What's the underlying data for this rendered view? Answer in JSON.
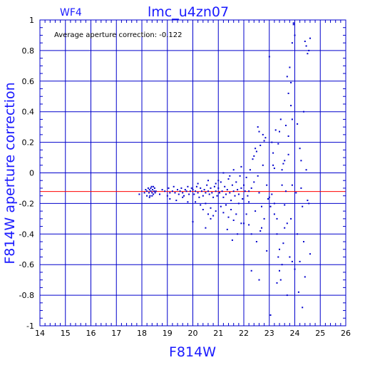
{
  "chart_data": {
    "type": "scatter",
    "title": "lmc_u4zn07",
    "subtitle": "WF4",
    "xlabel": "F814W",
    "ylabel": "F814W aperture correction",
    "annotation": "Average aperture correction: -0.122",
    "xlim": [
      14,
      26
    ],
    "ylim": [
      -1,
      1
    ],
    "xticks": [
      "14",
      "15",
      "16",
      "17",
      "18",
      "19",
      "20",
      "21",
      "22",
      "23",
      "24",
      "25",
      "26"
    ],
    "yticks": [
      "-1",
      "-0.8",
      "-0.6",
      "-0.4",
      "-0.2",
      "0",
      "0.2",
      "0.4",
      "0.6",
      "0.8",
      "1"
    ],
    "grid": true,
    "reference_line": {
      "y": -0.122,
      "color": "#ff0000"
    },
    "colors": {
      "axes": "#0000cc",
      "points": "#0000cc",
      "text": "#1a1aff"
    },
    "series": [
      {
        "points": [
          [
            17.9,
            -0.14
          ],
          [
            18.1,
            -0.13
          ],
          [
            18.15,
            -0.11
          ],
          [
            18.2,
            -0.12
          ],
          [
            18.25,
            -0.1
          ],
          [
            18.28,
            -0.13
          ],
          [
            18.3,
            -0.11
          ],
          [
            18.32,
            -0.15
          ],
          [
            18.35,
            -0.12
          ],
          [
            18.38,
            -0.09
          ],
          [
            18.4,
            -0.13
          ],
          [
            18.42,
            -0.11
          ],
          [
            18.45,
            -0.14
          ],
          [
            18.48,
            -0.12
          ],
          [
            18.5,
            -0.1
          ],
          [
            18.52,
            -0.13
          ],
          [
            18.55,
            -0.12
          ],
          [
            18.2,
            -0.15
          ],
          [
            18.3,
            -0.16
          ],
          [
            18.4,
            -0.15
          ],
          [
            18.45,
            -0.09
          ],
          [
            18.35,
            -0.1
          ],
          [
            18.7,
            -0.14
          ],
          [
            18.8,
            -0.11
          ],
          [
            18.9,
            -0.12
          ],
          [
            19.0,
            -0.15
          ],
          [
            19.05,
            -0.1
          ],
          [
            19.1,
            -0.13
          ],
          [
            19.2,
            -0.12
          ],
          [
            19.25,
            -0.09
          ],
          [
            19.3,
            -0.13
          ],
          [
            19.4,
            -0.11
          ],
          [
            19.45,
            -0.14
          ],
          [
            19.5,
            -0.12
          ],
          [
            19.55,
            -0.1
          ],
          [
            19.6,
            -0.13
          ],
          [
            19.65,
            -0.15
          ],
          [
            19.7,
            -0.11
          ],
          [
            19.75,
            -0.12
          ],
          [
            19.8,
            -0.09
          ],
          [
            19.85,
            -0.14
          ],
          [
            19.9,
            -0.12
          ],
          [
            19.95,
            -0.1
          ],
          [
            19.1,
            -0.17
          ],
          [
            19.35,
            -0.18
          ],
          [
            19.6,
            -0.16
          ],
          [
            19.8,
            -0.19
          ],
          [
            20.0,
            -0.11
          ],
          [
            20.05,
            -0.14
          ],
          [
            20.1,
            -0.12
          ],
          [
            20.15,
            -0.09
          ],
          [
            20.2,
            -0.13
          ],
          [
            20.25,
            -0.16
          ],
          [
            20.3,
            -0.1
          ],
          [
            20.35,
            -0.12
          ],
          [
            20.4,
            -0.15
          ],
          [
            20.45,
            -0.11
          ],
          [
            20.5,
            -0.13
          ],
          [
            20.55,
            -0.08
          ],
          [
            20.6,
            -0.12
          ],
          [
            20.65,
            -0.14
          ],
          [
            20.7,
            -0.1
          ],
          [
            20.75,
            -0.13
          ],
          [
            20.8,
            -0.16
          ],
          [
            20.85,
            -0.09
          ],
          [
            20.9,
            -0.12
          ],
          [
            20.95,
            -0.15
          ],
          [
            20.1,
            -0.19
          ],
          [
            20.3,
            -0.21
          ],
          [
            20.4,
            -0.24
          ],
          [
            20.5,
            -0.2
          ],
          [
            20.6,
            -0.27
          ],
          [
            20.7,
            -0.23
          ],
          [
            20.8,
            -0.28
          ],
          [
            20.9,
            -0.25
          ],
          [
            20.0,
            -0.32
          ],
          [
            20.5,
            -0.36
          ],
          [
            20.7,
            -0.3
          ],
          [
            20.2,
            -0.07
          ],
          [
            20.6,
            -0.05
          ],
          [
            20.9,
            -0.07
          ],
          [
            21.0,
            -0.1
          ],
          [
            21.05,
            -0.13
          ],
          [
            21.1,
            -0.06
          ],
          [
            21.15,
            -0.12
          ],
          [
            21.2,
            -0.16
          ],
          [
            21.25,
            -0.09
          ],
          [
            21.3,
            -0.14
          ],
          [
            21.35,
            -0.11
          ],
          [
            21.4,
            -0.04
          ],
          [
            21.45,
            -0.13
          ],
          [
            21.5,
            -0.18
          ],
          [
            21.55,
            -0.08
          ],
          [
            21.6,
            -0.12
          ],
          [
            21.65,
            -0.15
          ],
          [
            21.7,
            -0.06
          ],
          [
            21.75,
            -0.11
          ],
          [
            21.8,
            -0.14
          ],
          [
            21.85,
            -0.02
          ],
          [
            21.9,
            -0.1
          ],
          [
            21.95,
            -0.17
          ],
          [
            21.1,
            -0.22
          ],
          [
            21.2,
            -0.26
          ],
          [
            21.3,
            -0.21
          ],
          [
            21.4,
            -0.29
          ],
          [
            21.5,
            -0.24
          ],
          [
            21.6,
            -0.31
          ],
          [
            21.7,
            -0.27
          ],
          [
            21.8,
            -0.2
          ],
          [
            21.9,
            -0.33
          ],
          [
            21.35,
            -0.37
          ],
          [
            21.55,
            -0.44
          ],
          [
            21.75,
            -0.4
          ],
          [
            21.2,
            0.0
          ],
          [
            21.6,
            0.02
          ],
          [
            21.9,
            0.04
          ],
          [
            21.0,
            -0.05
          ],
          [
            21.45,
            -0.02
          ],
          [
            22.0,
            -0.08
          ],
          [
            22.05,
            -0.12
          ],
          [
            22.1,
            -0.03
          ],
          [
            22.15,
            -0.15
          ],
          [
            22.2,
            -0.19
          ],
          [
            22.25,
            0.02
          ],
          [
            22.3,
            -0.1
          ],
          [
            22.35,
            0.09
          ],
          [
            22.4,
            -0.06
          ],
          [
            22.45,
            -0.25
          ],
          [
            22.5,
            0.14
          ],
          [
            22.55,
            -0.02
          ],
          [
            22.6,
            -0.13
          ],
          [
            22.65,
            0.18
          ],
          [
            22.7,
            -0.22
          ],
          [
            22.75,
            0.05
          ],
          [
            22.8,
            -0.3
          ],
          [
            22.85,
            0.23
          ],
          [
            22.9,
            -0.08
          ],
          [
            22.95,
            -0.17
          ],
          [
            22.1,
            -0.27
          ],
          [
            22.2,
            -0.34
          ],
          [
            22.3,
            -0.4
          ],
          [
            22.4,
            0.11
          ],
          [
            22.5,
            -0.45
          ],
          [
            22.6,
            0.27
          ],
          [
            22.7,
            -0.36
          ],
          [
            22.8,
            0.21
          ],
          [
            22.9,
            -0.51
          ],
          [
            22.3,
            -0.64
          ],
          [
            22.6,
            -0.7
          ],
          [
            22.45,
            0.16
          ],
          [
            22.55,
            0.3
          ],
          [
            22.75,
            0.25
          ],
          [
            22.0,
            -0.33
          ],
          [
            22.2,
            -0.12
          ],
          [
            22.65,
            -0.38
          ],
          [
            23.0,
            0.76
          ],
          [
            23.05,
            -0.93
          ],
          [
            23.1,
            -0.14
          ],
          [
            23.15,
            0.13
          ],
          [
            23.2,
            -0.27
          ],
          [
            23.25,
            0.28
          ],
          [
            23.3,
            -0.4
          ],
          [
            23.35,
            0.19
          ],
          [
            23.4,
            -0.5
          ],
          [
            23.45,
            0.35
          ],
          [
            23.5,
            -0.08
          ],
          [
            23.55,
            0.06
          ],
          [
            23.6,
            -0.21
          ],
          [
            23.65,
            0.31
          ],
          [
            23.7,
            -0.33
          ],
          [
            23.75,
            0.12
          ],
          [
            23.8,
            -0.55
          ],
          [
            23.85,
            0.44
          ],
          [
            23.9,
            -0.08
          ],
          [
            23.95,
            0.98
          ],
          [
            23.1,
            0.2
          ],
          [
            23.2,
            0.03
          ],
          [
            23.3,
            -0.3
          ],
          [
            23.4,
            0.27
          ],
          [
            23.5,
            -0.6
          ],
          [
            23.6,
            0.08
          ],
          [
            23.7,
            0.63
          ],
          [
            23.8,
            0.69
          ],
          [
            23.9,
            0.85
          ],
          [
            23.95,
            0.97
          ],
          [
            23.85,
            0.59
          ],
          [
            23.75,
            0.52
          ],
          [
            23.6,
            -0.36
          ],
          [
            23.4,
            -0.64
          ],
          [
            23.3,
            -0.72
          ],
          [
            23.7,
            -0.8
          ],
          [
            23.9,
            -0.58
          ],
          [
            23.2,
            -0.2
          ],
          [
            23.0,
            -0.16
          ],
          [
            23.5,
            0.02
          ],
          [
            23.65,
            -0.12
          ],
          [
            23.85,
            -0.3
          ],
          [
            23.9,
            0.35
          ],
          [
            23.75,
            0.24
          ],
          [
            23.55,
            -0.46
          ],
          [
            23.45,
            -0.7
          ],
          [
            23.35,
            -0.55
          ],
          [
            23.15,
            0.05
          ],
          [
            23.05,
            -0.22
          ],
          [
            24.0,
            0.9
          ],
          [
            24.05,
            -0.13
          ],
          [
            24.1,
            -0.4
          ],
          [
            24.15,
            -0.78
          ],
          [
            24.2,
            0.16
          ],
          [
            24.25,
            0.08
          ],
          [
            24.3,
            -0.22
          ],
          [
            24.35,
            0.4
          ],
          [
            24.4,
            -0.68
          ],
          [
            24.45,
            0.83
          ],
          [
            24.5,
            0.78
          ],
          [
            24.55,
            -0.2
          ],
          [
            24.6,
            -0.53
          ],
          [
            24.4,
            0.86
          ],
          [
            24.5,
            -0.18
          ],
          [
            24.3,
            -0.88
          ],
          [
            24.2,
            -0.58
          ],
          [
            24.1,
            0.32
          ],
          [
            24.6,
            0.88
          ],
          [
            24.45,
            0.02
          ],
          [
            24.35,
            -0.45
          ],
          [
            24.0,
            -0.63
          ],
          [
            24.25,
            -0.1
          ],
          [
            24.55,
            0.8
          ]
        ]
      }
    ]
  }
}
